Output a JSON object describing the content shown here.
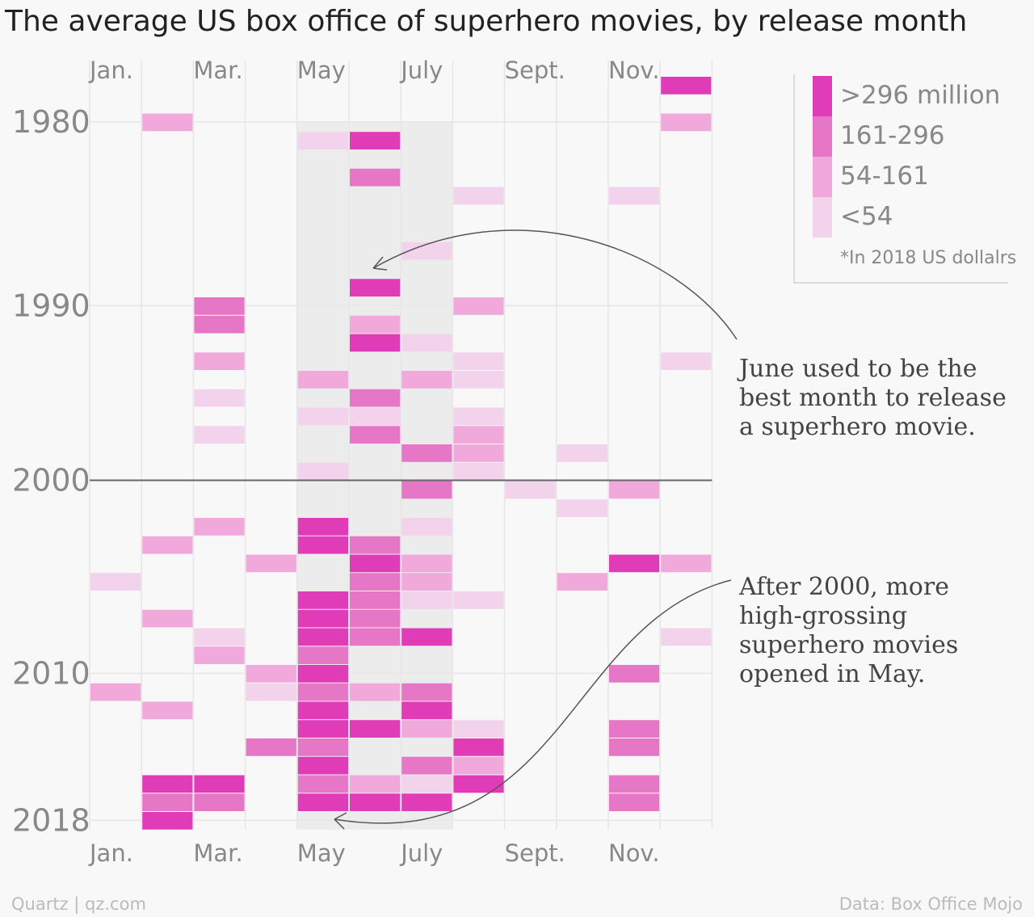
{
  "title": "The average US box office of superhero movies, by release month",
  "footer": {
    "left": "Quartz | qz.com",
    "right": "Data: Box Office Mojo"
  },
  "colors": {
    "background": "#f8f8f8",
    "highlight_band": "#ececec",
    "grid": "#e6e6e6",
    "divider": "#666666",
    "bins": [
      "#f3d2ec",
      "#f1a9dc",
      "#e677c6",
      "#e03cb8"
    ]
  },
  "legend": {
    "items": [
      ">296 million",
      "161-296",
      "54-161",
      "<54"
    ],
    "note": "*In 2018 US dollalrs"
  },
  "annotations": {
    "june": [
      "June used to be the",
      "best month to release",
      "a superhero movie."
    ],
    "may": [
      "After 2000, more",
      "high-grossing",
      "superhero movies",
      "opened in May."
    ]
  },
  "chart_data": {
    "type": "heatmap",
    "title": "The average US box office of superhero movies, by release month",
    "x_tick_labels": [
      "Jan.",
      "Mar.",
      "May",
      "July",
      "Sept.",
      "Nov."
    ],
    "x_tick_months": [
      1,
      3,
      5,
      7,
      9,
      11
    ],
    "y_tick_labels": [
      "1980",
      "1990",
      "2000",
      "2010",
      "2018"
    ],
    "y_tick_years": [
      1980,
      1990,
      2000,
      2010,
      2018
    ],
    "year_range": [
      1978,
      2018
    ],
    "month_range": [
      1,
      12
    ],
    "highlight_months": [
      5,
      7
    ],
    "divider_year": 2000,
    "bins": [
      "<54",
      "54-161",
      "161-296",
      ">296 million"
    ],
    "bin_units": "million 2018 US dollars",
    "cells_format": "[year, month, bin] — bin index 0:<54, 1:54-161, 2:161-296, 3:>296 million",
    "cells": [
      [
        1978,
        12,
        3
      ],
      [
        1980,
        2,
        1
      ],
      [
        1980,
        12,
        1
      ],
      [
        1981,
        5,
        0
      ],
      [
        1981,
        6,
        3
      ],
      [
        1983,
        6,
        2
      ],
      [
        1984,
        8,
        0
      ],
      [
        1984,
        11,
        0
      ],
      [
        1987,
        7,
        0
      ],
      [
        1989,
        6,
        3
      ],
      [
        1990,
        3,
        2
      ],
      [
        1990,
        8,
        1
      ],
      [
        1991,
        3,
        2
      ],
      [
        1991,
        6,
        1
      ],
      [
        1992,
        6,
        3
      ],
      [
        1992,
        7,
        0
      ],
      [
        1993,
        3,
        1
      ],
      [
        1993,
        8,
        0
      ],
      [
        1993,
        12,
        0
      ],
      [
        1994,
        5,
        1
      ],
      [
        1994,
        7,
        1
      ],
      [
        1994,
        8,
        0
      ],
      [
        1995,
        3,
        0
      ],
      [
        1995,
        6,
        2
      ],
      [
        1996,
        5,
        0
      ],
      [
        1996,
        6,
        0
      ],
      [
        1996,
        8,
        0
      ],
      [
        1997,
        3,
        0
      ],
      [
        1997,
        6,
        2
      ],
      [
        1997,
        8,
        1
      ],
      [
        1998,
        7,
        2
      ],
      [
        1998,
        8,
        1
      ],
      [
        1998,
        10,
        0
      ],
      [
        1999,
        5,
        0
      ],
      [
        1999,
        8,
        0
      ],
      [
        2000,
        7,
        2
      ],
      [
        2000,
        9,
        0
      ],
      [
        2000,
        11,
        1
      ],
      [
        2001,
        10,
        0
      ],
      [
        2002,
        3,
        1
      ],
      [
        2002,
        5,
        3
      ],
      [
        2002,
        7,
        0
      ],
      [
        2003,
        2,
        1
      ],
      [
        2003,
        5,
        3
      ],
      [
        2003,
        6,
        2
      ],
      [
        2004,
        4,
        1
      ],
      [
        2004,
        6,
        3
      ],
      [
        2004,
        7,
        1
      ],
      [
        2004,
        11,
        3
      ],
      [
        2004,
        12,
        1
      ],
      [
        2005,
        1,
        0
      ],
      [
        2005,
        6,
        2
      ],
      [
        2005,
        7,
        1
      ],
      [
        2005,
        10,
        1
      ],
      [
        2006,
        5,
        3
      ],
      [
        2006,
        6,
        2
      ],
      [
        2006,
        7,
        0
      ],
      [
        2006,
        8,
        0
      ],
      [
        2007,
        2,
        1
      ],
      [
        2007,
        5,
        3
      ],
      [
        2007,
        6,
        2
      ],
      [
        2008,
        3,
        0
      ],
      [
        2008,
        5,
        3
      ],
      [
        2008,
        6,
        2
      ],
      [
        2008,
        7,
        3
      ],
      [
        2008,
        12,
        0
      ],
      [
        2009,
        3,
        1
      ],
      [
        2009,
        5,
        2
      ],
      [
        2010,
        4,
        1
      ],
      [
        2010,
        5,
        3
      ],
      [
        2010,
        11,
        2
      ],
      [
        2011,
        1,
        1
      ],
      [
        2011,
        4,
        0
      ],
      [
        2011,
        5,
        2
      ],
      [
        2011,
        6,
        1
      ],
      [
        2011,
        7,
        2
      ],
      [
        2012,
        2,
        1
      ],
      [
        2012,
        5,
        3
      ],
      [
        2012,
        7,
        3
      ],
      [
        2013,
        5,
        3
      ],
      [
        2013,
        6,
        3
      ],
      [
        2013,
        7,
        1
      ],
      [
        2013,
        8,
        0
      ],
      [
        2013,
        11,
        2
      ],
      [
        2014,
        4,
        2
      ],
      [
        2014,
        5,
        2
      ],
      [
        2014,
        8,
        3
      ],
      [
        2014,
        11,
        2
      ],
      [
        2015,
        5,
        3
      ],
      [
        2015,
        7,
        2
      ],
      [
        2015,
        8,
        1
      ],
      [
        2016,
        2,
        3
      ],
      [
        2016,
        3,
        3
      ],
      [
        2016,
        5,
        2
      ],
      [
        2016,
        6,
        1
      ],
      [
        2016,
        7,
        0
      ],
      [
        2016,
        8,
        3
      ],
      [
        2016,
        11,
        2
      ],
      [
        2017,
        2,
        2
      ],
      [
        2017,
        3,
        2
      ],
      [
        2017,
        5,
        3
      ],
      [
        2017,
        6,
        3
      ],
      [
        2017,
        7,
        3
      ],
      [
        2017,
        11,
        2
      ],
      [
        2018,
        2,
        3
      ]
    ]
  }
}
